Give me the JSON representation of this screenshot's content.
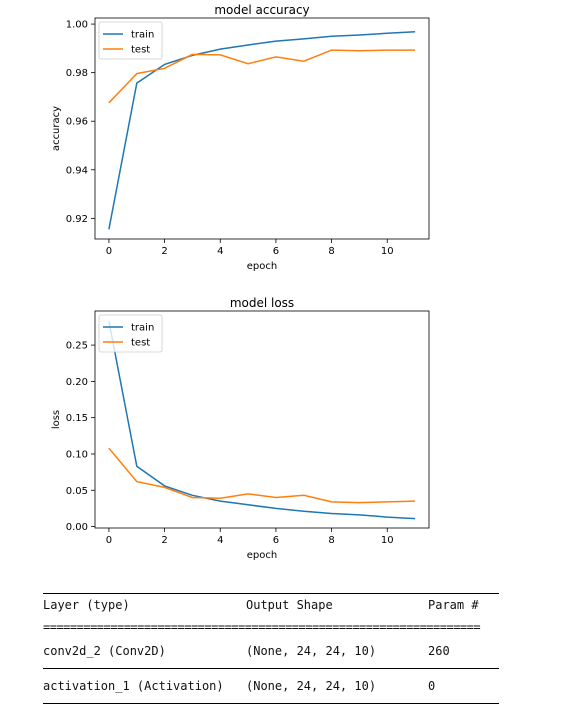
{
  "chart_data": [
    {
      "type": "line",
      "title": "model accuracy",
      "xlabel": "epoch",
      "ylabel": "accuracy",
      "x": [
        0,
        1,
        2,
        3,
        4,
        5,
        6,
        7,
        8,
        9,
        10,
        11
      ],
      "xlim": [
        -0.5,
        11.5
      ],
      "ylim": [
        0.9115,
        1.0025
      ],
      "xticks": [
        0,
        2,
        4,
        6,
        8,
        10
      ],
      "yticks": [
        0.92,
        0.94,
        0.96,
        0.98,
        1.0
      ],
      "ytick_labels": [
        "0.92",
        "0.94",
        "0.96",
        "0.98",
        "1.00"
      ],
      "grid": false,
      "legend": "upper-left",
      "series": [
        {
          "name": "train",
          "color": "#1f77b4",
          "values": [
            0.9155,
            0.9757,
            0.9834,
            0.9871,
            0.9897,
            0.9914,
            0.993,
            0.9939,
            0.995,
            0.9955,
            0.9962,
            0.9968
          ]
        },
        {
          "name": "test",
          "color": "#ff7f0e",
          "values": [
            0.9676,
            0.9796,
            0.9818,
            0.9875,
            0.9873,
            0.9837,
            0.9865,
            0.9847,
            0.9893,
            0.989,
            0.9893,
            0.9893
          ]
        }
      ]
    },
    {
      "type": "line",
      "title": "model loss",
      "xlabel": "epoch",
      "ylabel": "loss",
      "x": [
        0,
        1,
        2,
        3,
        4,
        5,
        6,
        7,
        8,
        9,
        10,
        11
      ],
      "xlim": [
        -0.5,
        11.5
      ],
      "ylim": [
        -0.002,
        0.297
      ],
      "xticks": [
        0,
        2,
        4,
        6,
        8,
        10
      ],
      "yticks": [
        0.0,
        0.05,
        0.1,
        0.15,
        0.2,
        0.25
      ],
      "ytick_labels": [
        "0.00",
        "0.05",
        "0.10",
        "0.15",
        "0.20",
        "0.25"
      ],
      "grid": false,
      "legend": "upper-left",
      "series": [
        {
          "name": "train",
          "color": "#1f77b4",
          "values": [
            0.283,
            0.083,
            0.056,
            0.043,
            0.035,
            0.03,
            0.025,
            0.021,
            0.018,
            0.016,
            0.013,
            0.011
          ]
        },
        {
          "name": "test",
          "color": "#ff7f0e",
          "values": [
            0.108,
            0.062,
            0.054,
            0.04,
            0.039,
            0.045,
            0.04,
            0.043,
            0.034,
            0.033,
            0.034,
            0.035
          ]
        }
      ]
    }
  ],
  "summary": {
    "headers": [
      "Layer (type)",
      "Output Shape",
      "Param #"
    ],
    "separator": "=================================================================",
    "rows": [
      [
        "conv2d_2 (Conv2D)",
        "(None, 24, 24, 10)",
        "260"
      ],
      [
        "activation_1 (Activation)",
        "(None, 24, 24, 10)",
        "0"
      ]
    ]
  }
}
